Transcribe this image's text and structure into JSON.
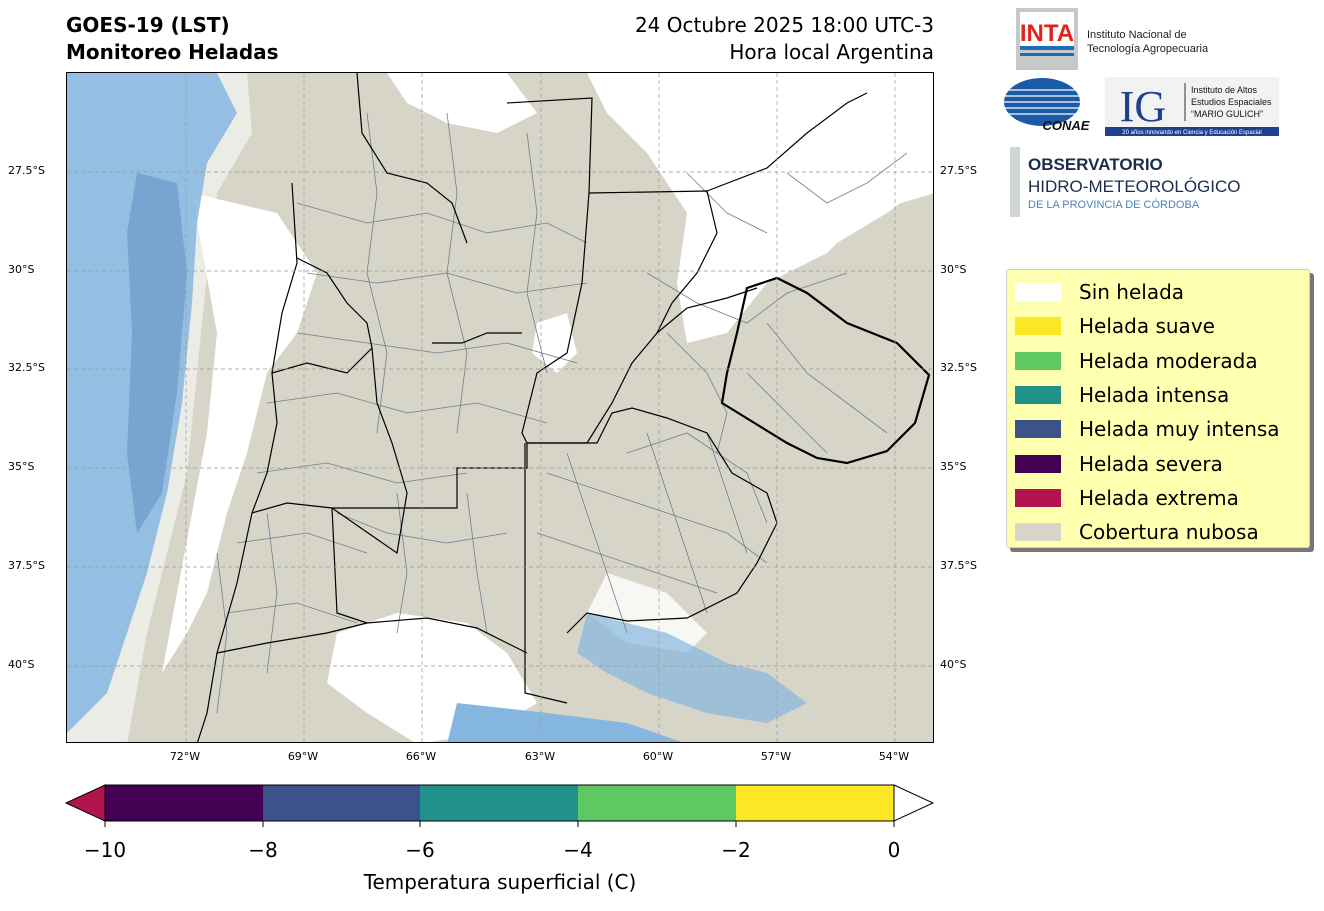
{
  "header": {
    "title_line1": "GOES-19 (LST)",
    "title_line2": "Monitoreo Heladas",
    "date_line1": "24 Octubre 2025 18:00 UTC-3",
    "date_line2": "Hora local Argentina"
  },
  "map": {
    "lat_ticks": [
      "27.5°S",
      "30°S",
      "32.5°S",
      "35°S",
      "37.5°S",
      "40°S"
    ],
    "lon_ticks": [
      "72°W",
      "69°W",
      "66°W",
      "63°W",
      "60°W",
      "57°W",
      "54°W"
    ],
    "colors": {
      "cloud": "#d6d5c7",
      "no_frost": "#ffffff",
      "water": "#85b6e0",
      "boundary": "#000000",
      "department": "#6e7f94"
    }
  },
  "legend": {
    "items": [
      {
        "label": "Sin helada",
        "color": "#ffffff"
      },
      {
        "label": "Helada suave",
        "color": "#fde725"
      },
      {
        "label": "Helada moderada",
        "color": "#5ec962"
      },
      {
        "label": "Helada intensa",
        "color": "#21918c"
      },
      {
        "label": "Helada muy intensa",
        "color": "#3b528b"
      },
      {
        "label": "Helada severa",
        "color": "#440154"
      },
      {
        "label": "Helada extrema",
        "color": "#b2144f"
      },
      {
        "label": "Cobertura nubosa",
        "color": "#d6d5c7"
      }
    ]
  },
  "colorbar": {
    "title": "Temperatura superficial (C)",
    "ticks": [
      "−10",
      "−8",
      "−6",
      "−4",
      "−2",
      "0"
    ],
    "segments": [
      "#440154",
      "#3b528b",
      "#21918c",
      "#5ec962",
      "#fde725"
    ],
    "under_color": "#b2144f",
    "over_color": "#ffffff"
  },
  "logos": {
    "inta_mark": "INTA",
    "inta_line1": "Instituto Nacional de",
    "inta_line2": "Tecnología Agropecuaria",
    "conae": "CONAE",
    "ig_mark": "IG",
    "ig_line1": "Instituto de Altos",
    "ig_line2": "Estudios Espaciales",
    "ig_line3": "“MARIO GULICH”",
    "ig_tagline": "20 años innovando en Ciencia y Educación Espacial",
    "obs_line1": "OBSERVATORIO",
    "obs_line2": "HIDRO-METEOROLÓGICO",
    "obs_line3": "DE LA PROVINCIA DE CÓRDOBA"
  }
}
